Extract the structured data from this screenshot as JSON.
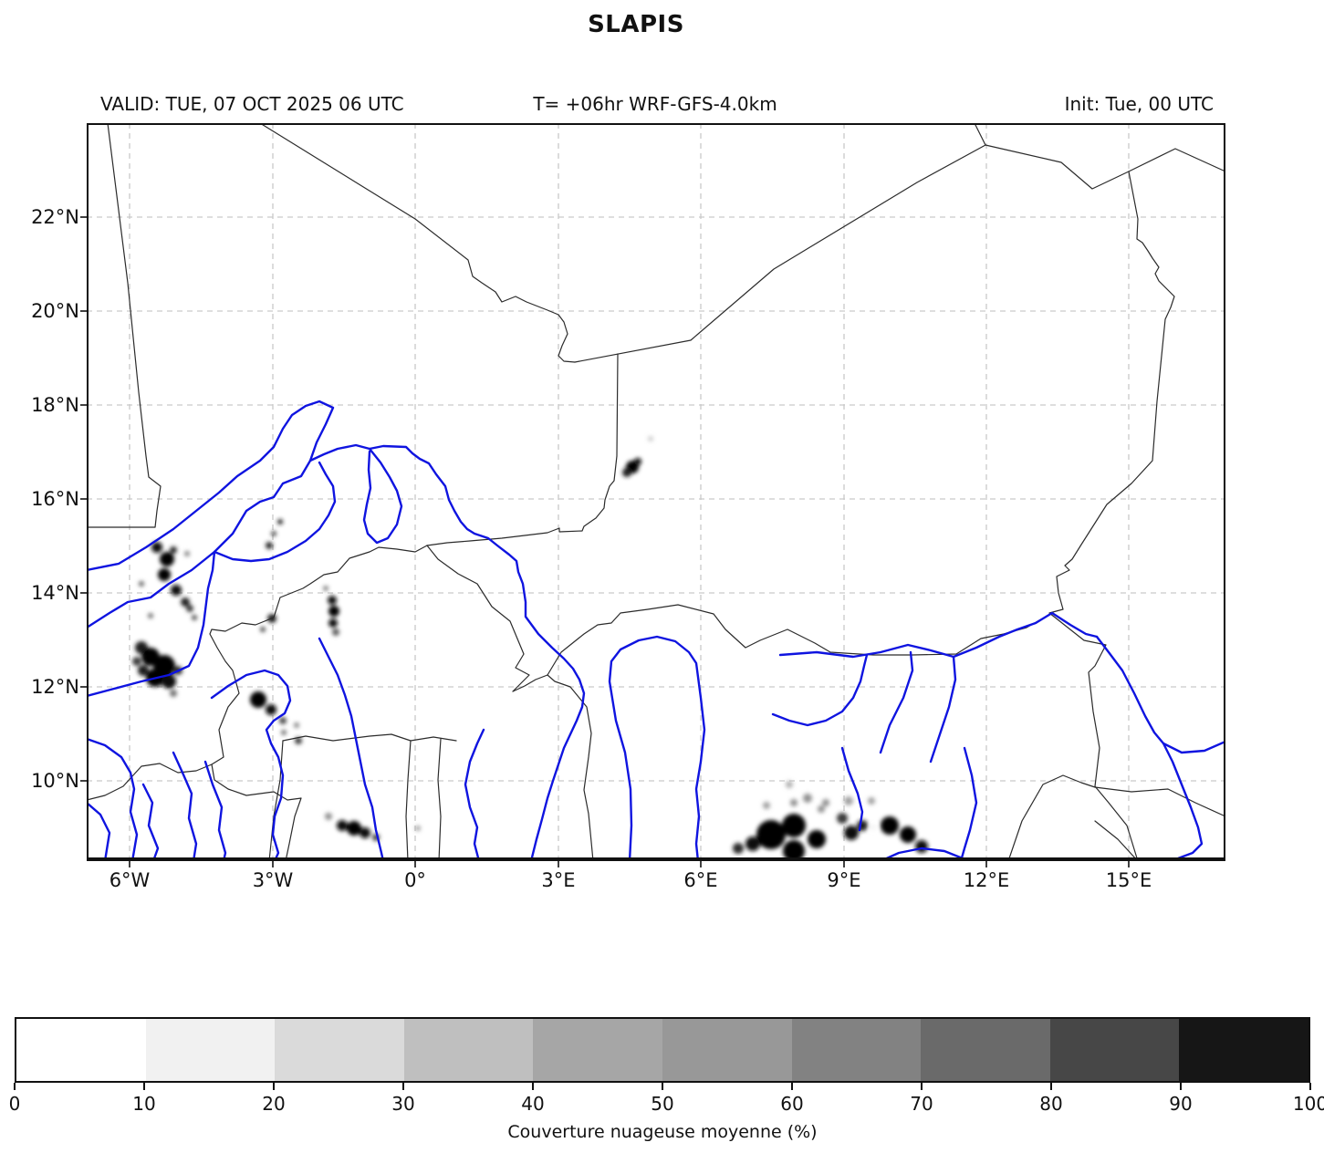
{
  "title": "SLAPIS",
  "header": {
    "valid": "VALID: TUE, 07 OCT 2025 06 UTC",
    "model": "T= +06hr WRF-GFS-4.0km",
    "init": "Init: Tue, 00 UTC"
  },
  "map": {
    "x_tick_labels": [
      "6°W",
      "3°W",
      "0°",
      "3°E",
      "6°E",
      "9°E",
      "12°E",
      "15°E"
    ],
    "y_tick_labels": [
      "22°N",
      "20°N",
      "18°N",
      "16°N",
      "14°N",
      "12°N",
      "10°N"
    ]
  },
  "colorbar": {
    "label": "Couverture nuageuse moyenne (%)",
    "tick_labels": [
      "0",
      "10",
      "20",
      "30",
      "40",
      "50",
      "60",
      "70",
      "80",
      "90",
      "100"
    ],
    "segment_colors": [
      "#ffffff",
      "#f1f1f1",
      "#dadada",
      "#bfbfbf",
      "#a6a6a6",
      "#989898",
      "#828282",
      "#6a6a6a",
      "#474747",
      "#161616"
    ]
  },
  "map_colors": {
    "river": "#0f14e0",
    "border": "#2b2b2b",
    "grid": "#c9c9c9",
    "frame": "#111111",
    "cloud_dark": "#000000"
  }
}
